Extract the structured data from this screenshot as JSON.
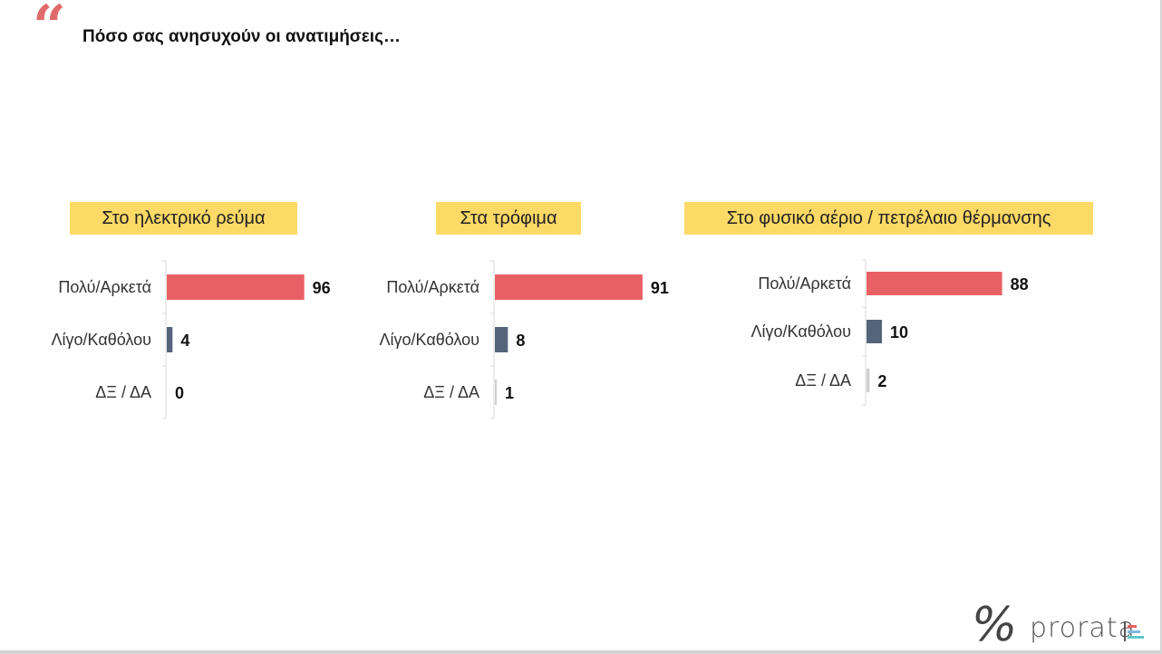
{
  "title": "Πόσο σας ανησυχούν οι ανατιμήσεις…",
  "logo": {
    "name": "prorata",
    "icon": "percent-icon"
  },
  "colors": {
    "high": "#e86064",
    "low": "#54657a",
    "dk": "#cfcfcf",
    "header": "#fdd966",
    "quote": "#e06a6a"
  },
  "chart_data": [
    {
      "type": "bar",
      "orientation": "horizontal",
      "title": "Στο ηλεκτρικό ρεύμα",
      "categories": [
        "Πολύ/Αρκετά",
        "Λίγο/Καθόλου",
        "ΔΞ / ΔΑ"
      ],
      "values": [
        96,
        4,
        0
      ],
      "xlim": [
        0,
        100
      ]
    },
    {
      "type": "bar",
      "orientation": "horizontal",
      "title": "Στα τρόφιμα",
      "categories": [
        "Πολύ/Αρκετά",
        "Λίγο/Καθόλου",
        "ΔΞ / ΔΑ"
      ],
      "values": [
        91,
        8,
        1
      ],
      "xlim": [
        0,
        100
      ]
    },
    {
      "type": "bar",
      "orientation": "horizontal",
      "title": "Στο φυσικό αέριο / πετρέλαιο θέρμανσης",
      "categories": [
        "Πολύ/Αρκετά",
        "Λίγο/Καθόλου",
        "ΔΞ / ΔΑ"
      ],
      "values": [
        88,
        10,
        2
      ],
      "xlim": [
        0,
        100
      ]
    }
  ]
}
